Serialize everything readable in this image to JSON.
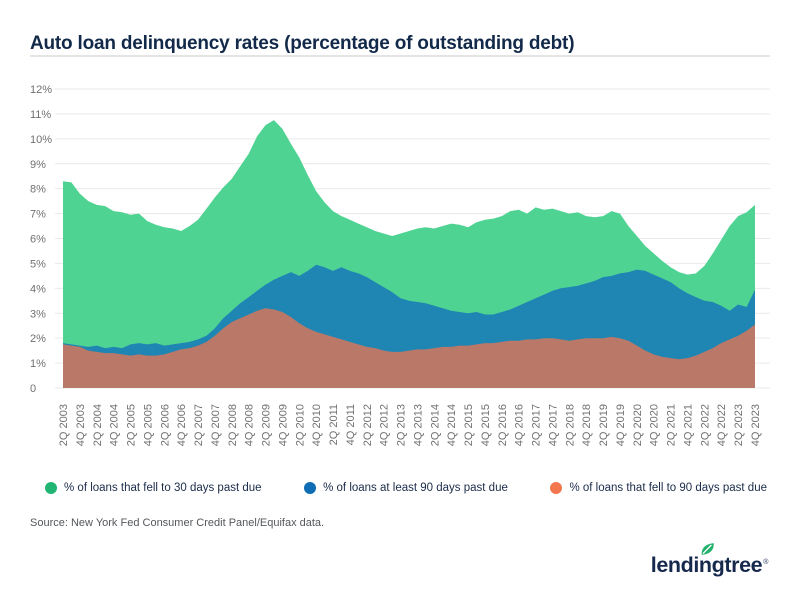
{
  "title": "Auto loan delinquency rates (percentage of outstanding debt)",
  "source": "Source: New York Fed Consumer Credit Panel/Equifax data.",
  "logo": {
    "text": "lendingtree",
    "part1": "lendi",
    "part2": "n",
    "part3": "gtree",
    "registered": "®"
  },
  "colors": {
    "title_text": "#12294a",
    "axis_text": "#707070",
    "gridline": "#e9e9e9",
    "legend_text": "#1b2b4a",
    "source_text": "#54575c",
    "logo_text": "#16294d",
    "leaf_green": "#23b26d"
  },
  "legend": [
    {
      "label": "% of loans that fell to 30 days past due",
      "color": "#21b573"
    },
    {
      "label": "% of loans at least 90 days past due",
      "color": "#0f6db5"
    },
    {
      "label": "% of loans that fell to 90 days past due",
      "color": "#f4764e"
    }
  ],
  "chart_data": {
    "type": "area",
    "title": "Auto loan delinquency rates (percentage of outstanding debt)",
    "xlabel": "",
    "ylabel": "",
    "ylim": [
      0,
      12
    ],
    "y_tick_labels": [
      "0",
      "1%",
      "2%",
      "3%",
      "4%",
      "5%",
      "6%",
      "7%",
      "8%",
      "9%",
      "10%",
      "11%",
      "12%"
    ],
    "grid": "horizontal",
    "legend_position": "bottom",
    "x_label_rotation": -90,
    "x_frequency": "quarterly",
    "x_tick_labels": [
      "2Q 2003",
      "4Q 2003",
      "2Q 2004",
      "4Q 2004",
      "2Q 2005",
      "4Q 2005",
      "2Q 2006",
      "4Q 2006",
      "2Q 2007",
      "4Q 2007",
      "2Q 2008",
      "4Q 2008",
      "2Q 2009",
      "4Q 2009",
      "2Q 2010",
      "4Q 2010",
      "2Q 2011",
      "4Q 2011",
      "2Q 2012",
      "4Q 2012",
      "2Q 2013",
      "4Q 2013",
      "2Q 2014",
      "4Q 2014",
      "2Q 2015",
      "4Q 2015",
      "2Q 2016",
      "4Q 2016",
      "2Q 2017",
      "4Q 2017",
      "2Q 2018",
      "4Q 2018",
      "2Q 2019",
      "4Q 2019",
      "2Q 2020",
      "4Q 2020",
      "2Q 2021",
      "4Q 2021",
      "2Q 2022",
      "4Q 2022",
      "2Q 2023",
      "4Q 2023"
    ],
    "series": [
      {
        "name": "% of loans that fell to 30 days past due",
        "legend_color": "#21b573",
        "area_color": "#4fd392",
        "values": [
          8.3,
          8.25,
          7.8,
          7.5,
          7.35,
          7.3,
          7.1,
          7.05,
          6.95,
          7.0,
          6.7,
          6.55,
          6.45,
          6.4,
          6.3,
          6.5,
          6.75,
          7.2,
          7.65,
          8.05,
          8.4,
          8.9,
          9.4,
          10.1,
          10.55,
          10.75,
          10.4,
          9.8,
          9.25,
          8.55,
          7.9,
          7.45,
          7.1,
          6.9,
          6.75,
          6.6,
          6.45,
          6.3,
          6.2,
          6.1,
          6.2,
          6.3,
          6.4,
          6.45,
          6.4,
          6.5,
          6.6,
          6.55,
          6.45,
          6.65,
          6.75,
          6.8,
          6.9,
          7.1,
          7.15,
          7.0,
          7.25,
          7.15,
          7.2,
          7.1,
          7.0,
          7.05,
          6.9,
          6.85,
          6.9,
          7.1,
          7.0,
          6.5,
          6.1,
          5.7,
          5.4,
          5.1,
          4.85,
          4.65,
          4.55,
          4.6,
          4.9,
          5.4,
          5.95,
          6.5,
          6.9,
          7.05,
          7.35
        ]
      },
      {
        "name": "% of loans at least 90 days past due",
        "legend_color": "#0f6db5",
        "area_color": "#1f86b4",
        "values": [
          1.8,
          1.75,
          1.7,
          1.65,
          1.7,
          1.6,
          1.65,
          1.6,
          1.75,
          1.8,
          1.75,
          1.8,
          1.7,
          1.75,
          1.8,
          1.85,
          1.95,
          2.1,
          2.4,
          2.8,
          3.1,
          3.4,
          3.65,
          3.9,
          4.15,
          4.35,
          4.5,
          4.65,
          4.5,
          4.7,
          4.95,
          4.85,
          4.7,
          4.85,
          4.7,
          4.6,
          4.45,
          4.25,
          4.05,
          3.85,
          3.6,
          3.5,
          3.45,
          3.4,
          3.3,
          3.2,
          3.1,
          3.05,
          3.0,
          3.05,
          2.95,
          2.95,
          3.05,
          3.15,
          3.3,
          3.45,
          3.6,
          3.75,
          3.9,
          4.0,
          4.05,
          4.1,
          4.2,
          4.3,
          4.45,
          4.5,
          4.6,
          4.65,
          4.75,
          4.7,
          4.55,
          4.4,
          4.25,
          4.0,
          3.8,
          3.65,
          3.5,
          3.45,
          3.3,
          3.1,
          3.35,
          3.25,
          3.95
        ]
      },
      {
        "name": "% of loans that fell to 90 days past due",
        "legend_color": "#f4764e",
        "area_color": "#b97868",
        "values": [
          1.75,
          1.7,
          1.65,
          1.5,
          1.45,
          1.4,
          1.4,
          1.35,
          1.3,
          1.35,
          1.3,
          1.3,
          1.35,
          1.45,
          1.55,
          1.6,
          1.7,
          1.85,
          2.1,
          2.4,
          2.65,
          2.8,
          2.95,
          3.1,
          3.2,
          3.15,
          3.05,
          2.85,
          2.6,
          2.4,
          2.25,
          2.15,
          2.05,
          1.95,
          1.85,
          1.75,
          1.65,
          1.6,
          1.5,
          1.45,
          1.45,
          1.5,
          1.55,
          1.55,
          1.6,
          1.65,
          1.65,
          1.7,
          1.7,
          1.75,
          1.8,
          1.8,
          1.85,
          1.9,
          1.9,
          1.95,
          1.95,
          2.0,
          2.0,
          1.95,
          1.9,
          1.95,
          2.0,
          2.0,
          2.0,
          2.05,
          2.0,
          1.9,
          1.7,
          1.5,
          1.35,
          1.25,
          1.2,
          1.15,
          1.2,
          1.3,
          1.45,
          1.6,
          1.8,
          1.95,
          2.1,
          2.3,
          2.55
        ]
      }
    ]
  }
}
